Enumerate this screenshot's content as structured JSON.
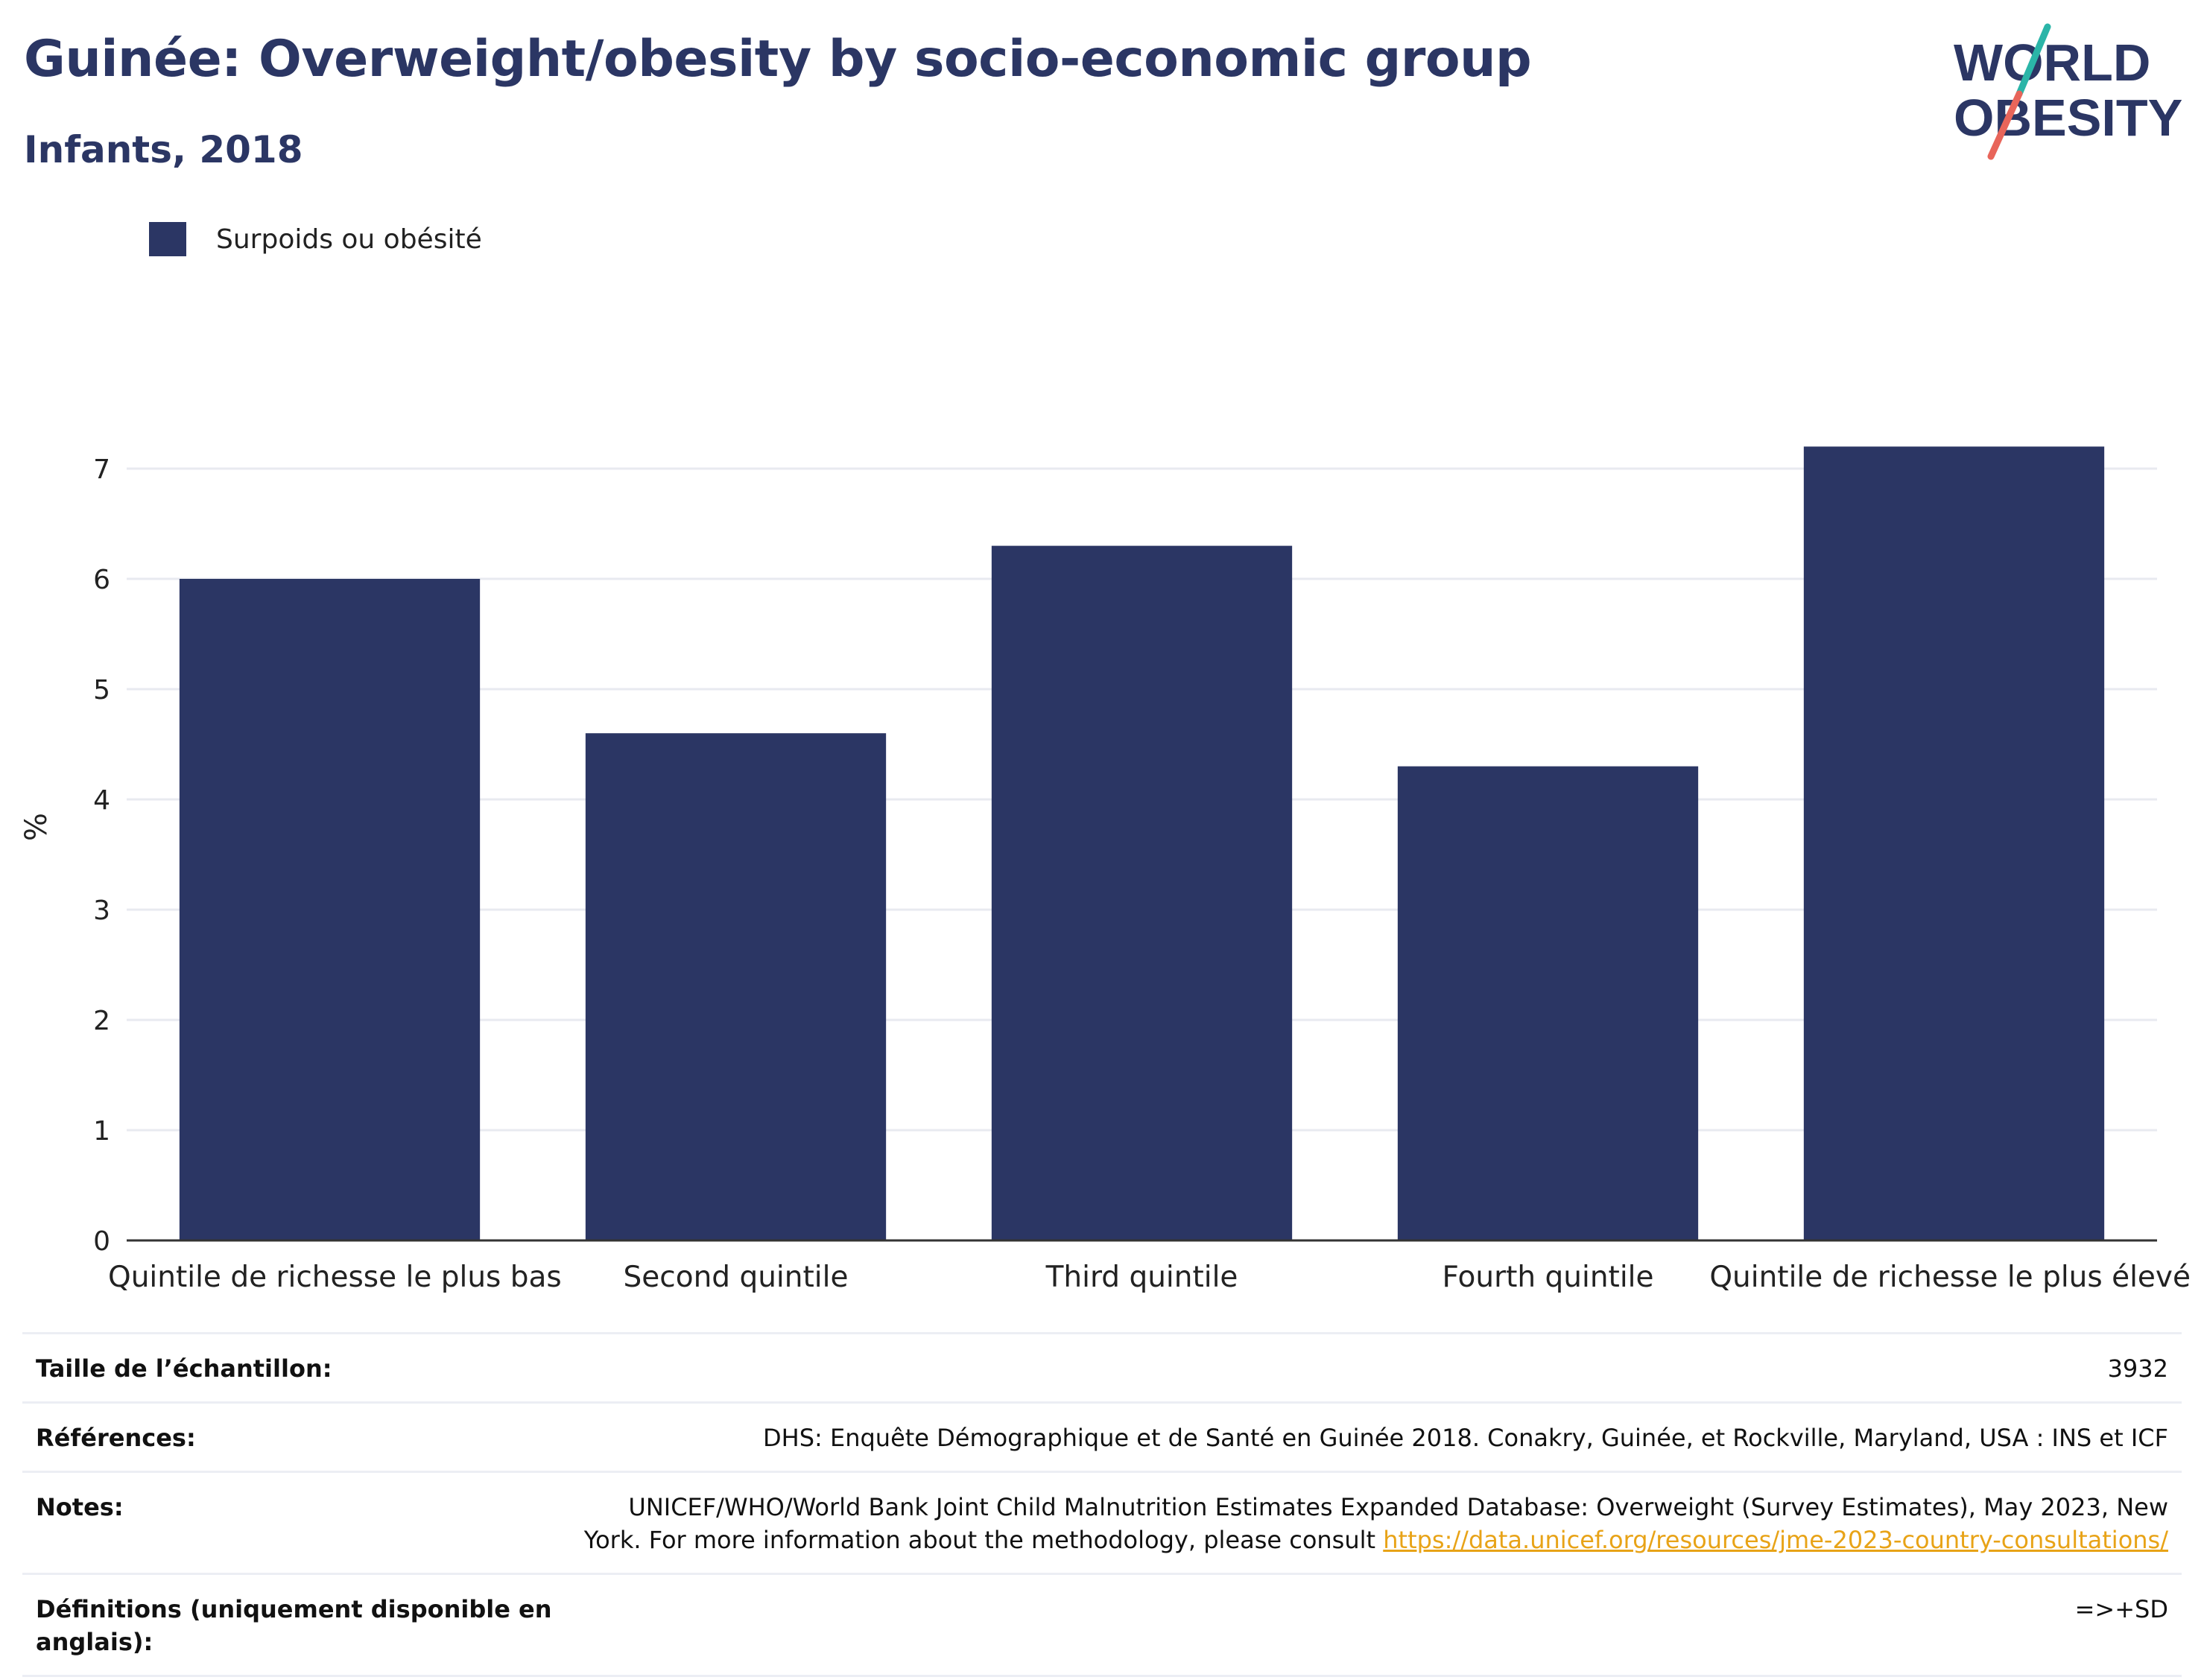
{
  "header": {
    "title": "Guinée: Overweight/obesity by socio-economic group",
    "subtitle": "Infants, 2018"
  },
  "logo": {
    "line1": "WORLD",
    "line2": "OBESITY",
    "colors": {
      "text": "#2b3664",
      "slash_top": "#2bb5a8",
      "slash_bottom": "#e8655a"
    }
  },
  "legend": {
    "label": "Surpoids ou obésité",
    "color": "#2b3664"
  },
  "chart_data": {
    "type": "bar",
    "categories": [
      "Quintile de richesse le plus bas",
      "Second quintile",
      "Third quintile",
      "Fourth quintile",
      "Quintile de richesse le plus élevé"
    ],
    "series": [
      {
        "name": "Surpoids ou obésité",
        "values": [
          6.0,
          4.6,
          6.3,
          4.3,
          7.2
        ]
      }
    ],
    "ylabel": "%",
    "xlabel": "",
    "ylim": [
      0,
      7.5
    ],
    "yticks": [
      0,
      1,
      2,
      3,
      4,
      5,
      6,
      7
    ],
    "grid": true,
    "legend_position": "top-left",
    "bar_color": "#2b3664"
  },
  "info": {
    "sample_label": "Taille de l’échantillon:",
    "sample_value": "3932",
    "references_label": "Références:",
    "references_value": "DHS: Enquête Démographique et de Santé en Guinée 2018. Conakry, Guinée, et Rockville, Maryland, USA : INS et ICF",
    "notes_label": "Notes:",
    "notes_text": "UNICEF/WHO/World Bank Joint Child Malnutrition Estimates Expanded Database: Overweight (Survey Estimates), May 2023, New York. For more information about the methodology, please consult",
    "notes_link": "https://data.unicef.org/resources/jme-2023-country-consultations/",
    "definitions_label": "Définitions (uniquement disponible en anglais):",
    "definitions_value": "=>+SD"
  }
}
